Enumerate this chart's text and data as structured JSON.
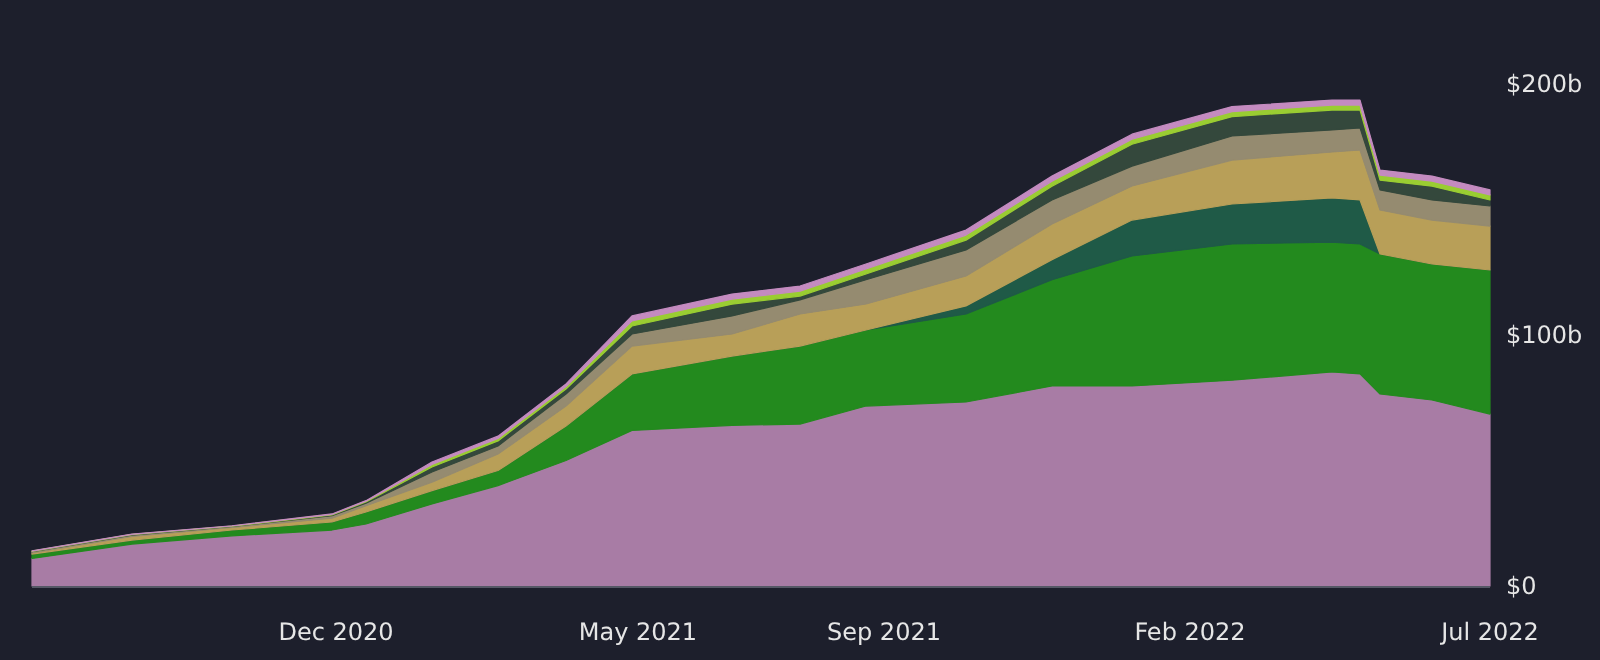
{
  "chart_data": {
    "type": "area",
    "stacked": true,
    "x": [
      "2020-07-02",
      "2020-08-21",
      "2020-10-10",
      "2020-11-29",
      "2020-12-16",
      "2021-01-18",
      "2021-02-20",
      "2021-03-26",
      "2021-04-28",
      "2021-06-17",
      "2021-07-21",
      "2021-08-23",
      "2021-10-12",
      "2021-11-24",
      "2022-01-03",
      "2022-02-22",
      "2022-04-13",
      "2022-04-27",
      "2022-05-07",
      "2022-06-02",
      "2022-07-01"
    ],
    "series": [
      {
        "color": "#a87ca5",
        "values": [
          11,
          16.7,
          20,
          22.3,
          24.7,
          32.7,
          40,
          50,
          62,
          64,
          64.5,
          71.7,
          73.3,
          79.7,
          79.7,
          82,
          85.3,
          84.5,
          76.5,
          74.1,
          68.5
        ]
      },
      {
        "color": "#238a1e",
        "values": [
          1.7,
          1.6,
          2.3,
          3.2,
          4.8,
          5.3,
          6,
          13.7,
          22.5,
          27.6,
          31.1,
          30.3,
          35.1,
          42.3,
          51.8,
          54.3,
          51.7,
          51.8,
          55.8,
          54.2,
          57.4
        ]
      },
      {
        "color": "#1f5a47",
        "values": [
          0,
          0,
          0,
          0,
          0,
          0,
          0,
          0,
          0,
          0,
          0,
          0,
          3.2,
          8,
          14.3,
          15.9,
          17.6,
          17.5,
          0,
          0,
          0
        ]
      },
      {
        "color": "#b89f58",
        "values": [
          0.5,
          1.5,
          1,
          1.5,
          2.5,
          3.4,
          6.6,
          8,
          11.1,
          8.8,
          12.8,
          10.4,
          11.9,
          14.2,
          13.6,
          17.5,
          18.3,
          19.9,
          17.5,
          17.5,
          17.5
        ]
      },
      {
        "color": "#958b70",
        "values": [
          0.5,
          0.5,
          0.4,
          1,
          1,
          4,
          3.2,
          4.8,
          4.8,
          7.2,
          5.6,
          9.6,
          10.4,
          9.6,
          7.9,
          9.6,
          8.8,
          8.8,
          8,
          8,
          8
        ]
      },
      {
        "color": "#34483c",
        "values": [
          0.1,
          0.2,
          0.1,
          0.3,
          0.5,
          2,
          2,
          2,
          3.2,
          4.7,
          1.5,
          2.3,
          3.9,
          5.5,
          8.7,
          7.7,
          7.9,
          7.1,
          3.9,
          5.5,
          2.4
        ]
      },
      {
        "color": "#9acd32",
        "values": [
          0.1,
          0.1,
          0.1,
          0.2,
          0.3,
          1,
          1,
          1,
          2,
          2,
          2,
          2,
          2,
          2,
          2,
          2,
          2,
          2,
          2,
          2,
          2
        ]
      },
      {
        "color": "#c48bc0",
        "values": [
          0.1,
          0.1,
          0.1,
          0.2,
          0.2,
          1,
          0.9,
          1,
          2,
          2,
          2,
          2,
          2,
          2,
          2,
          2,
          2,
          2,
          2,
          2,
          2
        ]
      }
    ],
    "xlim": [
      "2020-07-02",
      "2022-07-01"
    ],
    "xticks": [
      {
        "value": "2020-12-01",
        "label": "Dec 2020"
      },
      {
        "value": "2021-05-01",
        "label": "May 2021"
      },
      {
        "value": "2021-09-01",
        "label": "Sep 2021"
      },
      {
        "value": "2022-02-01",
        "label": "Feb 2022"
      },
      {
        "value": "2022-07-01",
        "label": "Jul 2022"
      }
    ],
    "ylim": [
      0,
      200
    ],
    "yticks": [
      {
        "value": 0,
        "label": "$0"
      },
      {
        "value": 100,
        "label": "$100b"
      },
      {
        "value": 200,
        "label": "$200b"
      }
    ]
  }
}
